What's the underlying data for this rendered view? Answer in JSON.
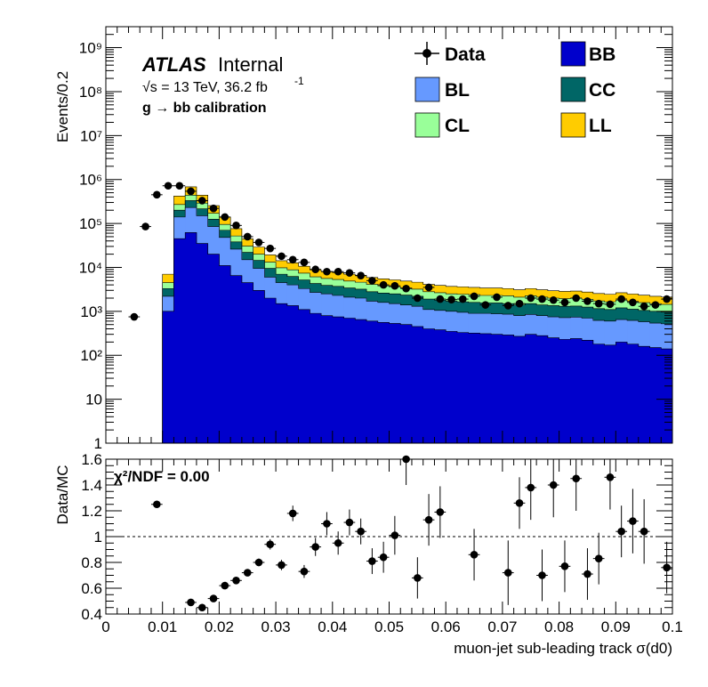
{
  "chart_data": [
    {
      "type": "bar",
      "subtype": "stacked-histogram-log",
      "ylabel": "Events/0.2",
      "yscale": "log",
      "ylim": [
        1,
        3000000000.0
      ],
      "xlim": [
        0,
        0.1
      ],
      "ytick_labels": [
        "1",
        "10",
        "10²",
        "10³",
        "10⁴",
        "10⁵",
        "10⁶",
        "10⁷",
        "10⁸",
        "10⁹"
      ],
      "annotations": {
        "atlas": "ATLAS",
        "internal": "Internal",
        "energy": "√s = 13 TeV, 36.2 fb",
        "energy_sup": "-1",
        "calib": "g  → bb calibration"
      },
      "legend": [
        "Data",
        "BB",
        "BL",
        "CC",
        "CL",
        "LL"
      ],
      "x": [
        0.011,
        0.013,
        0.015,
        0.017,
        0.019,
        0.021,
        0.023,
        0.025,
        0.027,
        0.029,
        0.031,
        0.033,
        0.035,
        0.037,
        0.039,
        0.041,
        0.043,
        0.045,
        0.047,
        0.049,
        0.051,
        0.053,
        0.055,
        0.057,
        0.059,
        0.061,
        0.063,
        0.065,
        0.067,
        0.069,
        0.071,
        0.073,
        0.075,
        0.077,
        0.079,
        0.081,
        0.083,
        0.085,
        0.087,
        0.089,
        0.091,
        0.093,
        0.095,
        0.097,
        0.099
      ],
      "series": [
        {
          "name": "BB",
          "color": "#0000cc",
          "values": [
            1000,
            45000,
            62000,
            35000,
            20000,
            11000,
            6500,
            4500,
            3000,
            2000,
            1500,
            1350,
            1100,
            900,
            800,
            750,
            700,
            650,
            600,
            560,
            530,
            500,
            450,
            400,
            380,
            350,
            330,
            320,
            310,
            300,
            290,
            270,
            300,
            280,
            250,
            230,
            240,
            220,
            180,
            170,
            200,
            180,
            160,
            150,
            140
          ]
        },
        {
          "name": "BL",
          "color": "#6699ff",
          "values": [
            2200,
            140000,
            230000,
            150000,
            85000,
            48000,
            26000,
            15000,
            9500,
            6000,
            4500,
            4000,
            3300,
            2700,
            2500,
            2300,
            2100,
            2000,
            1700,
            1600,
            1500,
            1400,
            1300,
            1100,
            1050,
            1000,
            950,
            900,
            900,
            880,
            860,
            800,
            850,
            800,
            750,
            720,
            740,
            700,
            620,
            600,
            650,
            620,
            580,
            540,
            520
          ]
        },
        {
          "name": "CC",
          "color": "#006666",
          "values": [
            3300,
            200000,
            330000,
            215000,
            125000,
            70000,
            38000,
            22000,
            14500,
            9500,
            7000,
            6200,
            5200,
            4300,
            3900,
            3700,
            3400,
            3200,
            2800,
            2600,
            2500,
            2350,
            2200,
            1900,
            1800,
            1700,
            1650,
            1600,
            1550,
            1550,
            1500,
            1400,
            1500,
            1400,
            1350,
            1300,
            1320,
            1250,
            1150,
            1100,
            1200,
            1120,
            1050,
            1000,
            960
          ]
        },
        {
          "name": "CL",
          "color": "#99ff99",
          "values": [
            4500,
            270000,
            440000,
            290000,
            170000,
            95000,
            52000,
            30500,
            20000,
            13200,
            9800,
            8800,
            7400,
            6100,
            5600,
            5300,
            4900,
            4600,
            4100,
            3800,
            3600,
            3400,
            3200,
            2800,
            2650,
            2500,
            2450,
            2400,
            2300,
            2300,
            2250,
            2100,
            2250,
            2100,
            2000,
            1950,
            1980,
            1880,
            1720,
            1650,
            1800,
            1680,
            1580,
            1500,
            1440
          ]
        },
        {
          "name": "LL",
          "color": "#ffcc00",
          "values": [
            7000,
            420000,
            680000,
            440000,
            255000,
            140000,
            76000,
            44500,
            29000,
            19200,
            14200,
            12700,
            10600,
            8800,
            8100,
            7600,
            7000,
            6600,
            5900,
            5500,
            5200,
            4900,
            4600,
            4100,
            3900,
            3700,
            3600,
            3500,
            3400,
            3400,
            3300,
            3100,
            3300,
            3100,
            2950,
            2850,
            2900,
            2750,
            2550,
            2450,
            2650,
            2480,
            2330,
            2200,
            2120
          ]
        }
      ],
      "data_points": {
        "name": "Data",
        "x": [
          0.005,
          0.007,
          0.009,
          0.011,
          0.013,
          0.015,
          0.017,
          0.019,
          0.021,
          0.023,
          0.025,
          0.027,
          0.029,
          0.031,
          0.033,
          0.035,
          0.037,
          0.039,
          0.041,
          0.043,
          0.045,
          0.047,
          0.049,
          0.051,
          0.053,
          0.055,
          0.057,
          0.059,
          0.061,
          0.063,
          0.065,
          0.067,
          0.069,
          0.071,
          0.073,
          0.075,
          0.077,
          0.079,
          0.081,
          0.083,
          0.085,
          0.087,
          0.089,
          0.091,
          0.093,
          0.095,
          0.097,
          0.099
        ],
        "y": [
          750,
          85000,
          450000,
          720000,
          720000,
          540000,
          330000,
          220000,
          140000,
          90000,
          50000,
          37000,
          27000,
          18000,
          15000,
          13000,
          9000,
          8000,
          8000,
          7500,
          6500,
          5000,
          4000,
          3800,
          3300,
          2000,
          3500,
          1900,
          1850,
          1900,
          2200,
          1400,
          2100,
          1350,
          1500,
          2000,
          1900,
          1800,
          1600,
          2000,
          1700,
          1500,
          1450,
          1900,
          1600,
          1300,
          1400,
          1900
        ]
      }
    },
    {
      "type": "scatter",
      "subtype": "ratio",
      "ylabel": "Data/MC",
      "xlabel": "muon-jet sub-leading track σ(d0)",
      "ylim": [
        0.4,
        1.6
      ],
      "xlim": [
        0,
        0.1
      ],
      "xtick_labels": [
        "0",
        "0.01",
        "0.02",
        "0.03",
        "0.04",
        "0.05",
        "0.06",
        "0.07",
        "0.08",
        "0.09",
        "0.1"
      ],
      "ytick_labels": [
        "0.4",
        "0.6",
        "0.8",
        "1",
        "1.2",
        "1.4",
        "1.6"
      ],
      "annotation": "χ²/NDF = 0.00",
      "reference_line": 1,
      "points": [
        {
          "x": 0.009,
          "y": 1.25,
          "err": 0.01
        },
        {
          "x": 0.015,
          "y": 0.49,
          "err": 0.005
        },
        {
          "x": 0.017,
          "y": 0.45,
          "err": 0.005
        },
        {
          "x": 0.019,
          "y": 0.52,
          "err": 0.008
        },
        {
          "x": 0.021,
          "y": 0.62,
          "err": 0.01
        },
        {
          "x": 0.023,
          "y": 0.66,
          "err": 0.015
        },
        {
          "x": 0.025,
          "y": 0.72,
          "err": 0.02
        },
        {
          "x": 0.027,
          "y": 0.8,
          "err": 0.03
        },
        {
          "x": 0.029,
          "y": 0.94,
          "err": 0.04
        },
        {
          "x": 0.031,
          "y": 0.78,
          "err": 0.04
        },
        {
          "x": 0.033,
          "y": 1.18,
          "err": 0.06
        },
        {
          "x": 0.035,
          "y": 0.73,
          "err": 0.05
        },
        {
          "x": 0.037,
          "y": 0.92,
          "err": 0.07
        },
        {
          "x": 0.039,
          "y": 1.1,
          "err": 0.09
        },
        {
          "x": 0.041,
          "y": 0.95,
          "err": 0.09
        },
        {
          "x": 0.043,
          "y": 1.11,
          "err": 0.1
        },
        {
          "x": 0.045,
          "y": 1.04,
          "err": 0.1
        },
        {
          "x": 0.047,
          "y": 0.81,
          "err": 0.1
        },
        {
          "x": 0.049,
          "y": 0.84,
          "err": 0.12
        },
        {
          "x": 0.051,
          "y": 1.01,
          "err": 0.15
        },
        {
          "x": 0.053,
          "y": 1.6,
          "err": 0.2
        },
        {
          "x": 0.055,
          "y": 0.68,
          "err": 0.16
        },
        {
          "x": 0.057,
          "y": 1.13,
          "err": 0.2
        },
        {
          "x": 0.059,
          "y": 1.19,
          "err": 0.2
        },
        {
          "x": 0.065,
          "y": 0.86,
          "err": 0.2
        },
        {
          "x": 0.071,
          "y": 0.72,
          "err": 0.25
        },
        {
          "x": 0.073,
          "y": 1.26,
          "err": 0.2
        },
        {
          "x": 0.075,
          "y": 1.38,
          "err": 0.25
        },
        {
          "x": 0.077,
          "y": 0.7,
          "err": 0.2
        },
        {
          "x": 0.079,
          "y": 1.4,
          "err": 0.25
        },
        {
          "x": 0.081,
          "y": 0.77,
          "err": 0.2
        },
        {
          "x": 0.083,
          "y": 1.45,
          "err": 0.25
        },
        {
          "x": 0.085,
          "y": 0.71,
          "err": 0.2
        },
        {
          "x": 0.087,
          "y": 0.83,
          "err": 0.2
        },
        {
          "x": 0.089,
          "y": 1.46,
          "err": 0.25
        },
        {
          "x": 0.091,
          "y": 1.04,
          "err": 0.2
        },
        {
          "x": 0.093,
          "y": 1.12,
          "err": 0.25
        },
        {
          "x": 0.095,
          "y": 1.04,
          "err": 0.25
        },
        {
          "x": 0.099,
          "y": 0.76,
          "err": 0.2
        }
      ]
    }
  ]
}
